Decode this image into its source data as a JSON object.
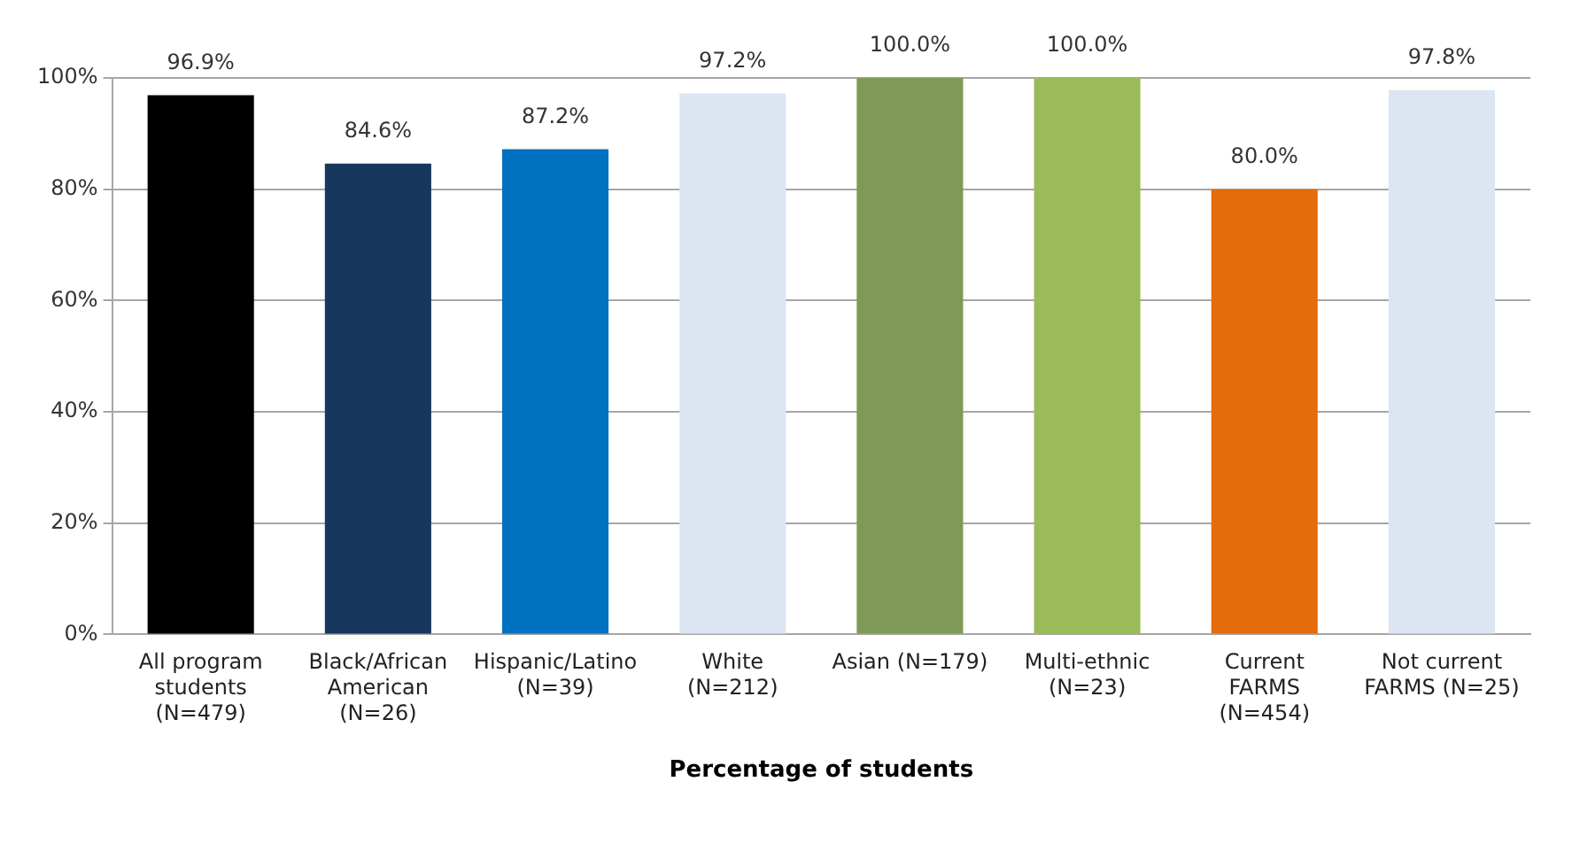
{
  "chart_data": {
    "type": "bar",
    "xlabel": "Percentage of students",
    "categories": [
      "All program\nstudents\n(N=479)",
      "Black/African\nAmerican\n(N=26)",
      "Hispanic/Latino\n(N=39)",
      "White\n(N=212)",
      "Asian (N=179)",
      "Multi-ethnic\n(N=23)",
      "Current\nFARMS\n(N=454)",
      "Not current\nFARMS (N=25)"
    ],
    "values": [
      96.9,
      84.6,
      87.2,
      97.2,
      100.0,
      100.0,
      80.0,
      97.8
    ],
    "colors": [
      "#000000",
      "#17375e",
      "#0070c0",
      "#dce6f2",
      "#7f9a57",
      "#9bbb59",
      "#e46c0a",
      "#dce6f2"
    ],
    "value_labels": [
      "96.9%",
      "84.6%",
      "87.2%",
      "97.2%",
      "100.0%",
      "100.0%",
      "80.0%",
      "97.8%"
    ],
    "ylim": [
      0,
      100
    ],
    "yticks": [
      {
        "value": 0,
        "label": "0%"
      },
      {
        "value": 20,
        "label": "20%"
      },
      {
        "value": 40,
        "label": "40%"
      },
      {
        "value": 60,
        "label": "60%"
      },
      {
        "value": 80,
        "label": "80%"
      },
      {
        "value": 100,
        "label": "100%"
      }
    ],
    "grid": "y",
    "legend": false
  }
}
